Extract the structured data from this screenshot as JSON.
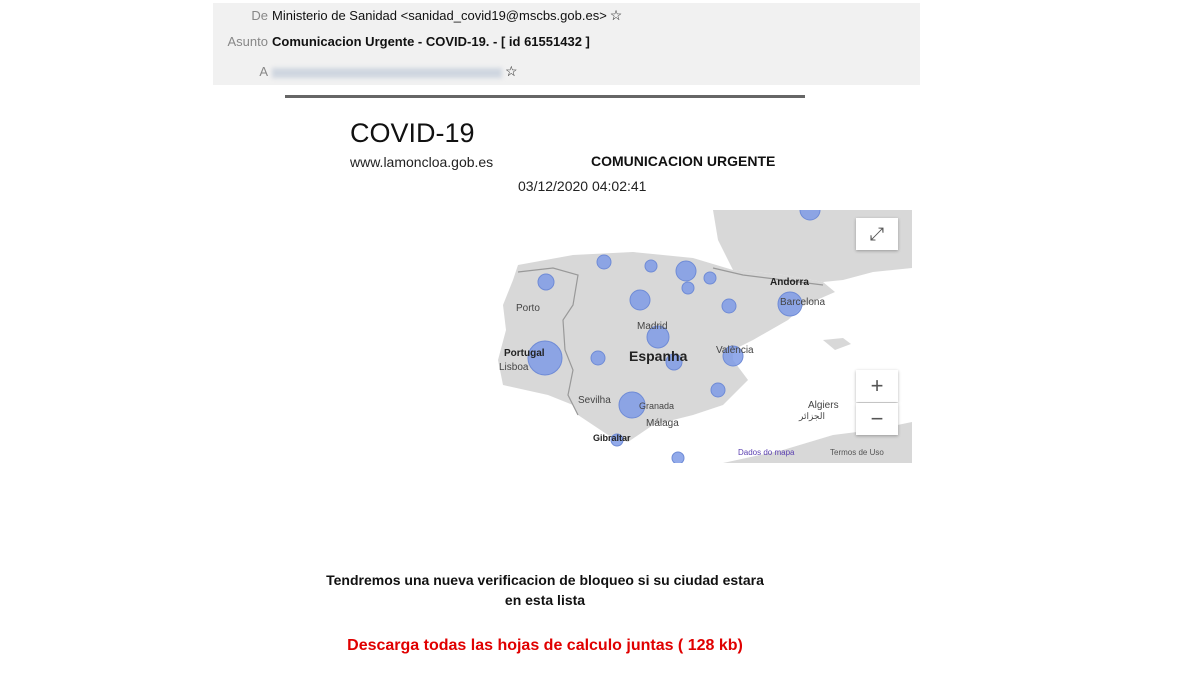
{
  "email": {
    "from_label": "De",
    "from_value": "Ministerio de Sanidad <sanidad_covid19@mscbs.gob.es>",
    "subject_label": "Asunto",
    "subject_value": "Comunicacion Urgente - COVID-19. - [ id 61551432 ]",
    "to_label": "A",
    "star_icon": "☆"
  },
  "body": {
    "title": "COVID-19",
    "site": "www.lamoncloa.gob.es",
    "urgent": "COMUNICACION URGENTE",
    "datetime": "03/12/2020 04:02:41",
    "message_line1": "Tendremos una nueva verificacion de bloqueo si su ciudad estara",
    "message_line2": "en esta lista",
    "download_link": "Descarga todas las hojas de calculo juntas ( 128 kb)"
  },
  "map": {
    "labels": {
      "andorra": "Andorra",
      "barcelona": "Barcelona",
      "porto": "Porto",
      "madrid": "Madrid",
      "portugal": "Portugal",
      "lisboa": "Lisboa",
      "espanha": "Espanha",
      "valencia": "València",
      "sevilha": "Sevilha",
      "granada": "Granada",
      "malaga": "Málaga",
      "gibraltar": "Gibraltar",
      "algiers": "Algiers",
      "algiers_ar": "الجزائر"
    },
    "zoom_in": "+",
    "zoom_out": "−",
    "fullscreen_icon": "⤢",
    "map_data_link": "Dados do mapa",
    "terms_link": "Termos de Uso",
    "bubble_color": "#7f9be6",
    "land_color": "#d8d8d8"
  }
}
